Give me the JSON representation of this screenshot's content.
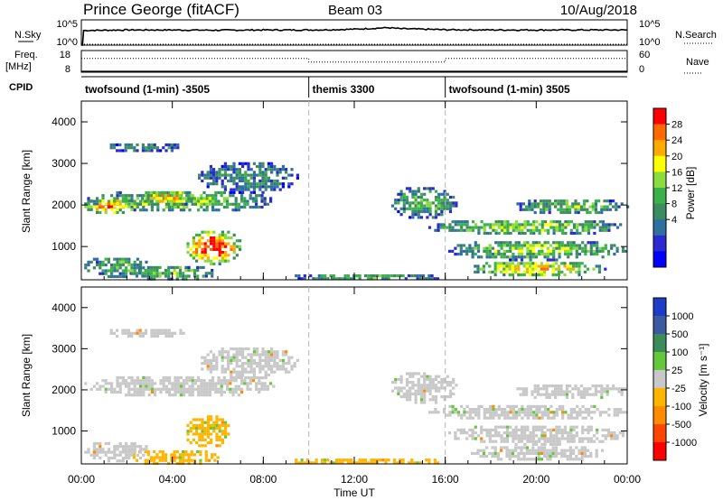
{
  "header": {
    "station": "Prince George (fitACF)",
    "beam": "Beam 03",
    "date": "10/Aug/2018"
  },
  "chart_data": [
    {
      "type": "line",
      "panel": "noise",
      "left_label": "N.Sky",
      "right_label": "N.Search",
      "left_ticks": [
        "10^5",
        "10^0"
      ],
      "right_ticks": [
        "10^5",
        "10^0"
      ],
      "series": [
        {
          "name": "N.Sky",
          "style": "solid",
          "x_hours": [
            0,
            0.05,
            0.1,
            2,
            4,
            6,
            8,
            10,
            11,
            12,
            13,
            13.5,
            14,
            15,
            16,
            18,
            20,
            22,
            24
          ],
          "log_values": [
            0,
            0,
            2.9,
            3.0,
            3.0,
            2.95,
            3.0,
            3.0,
            3.05,
            3.15,
            3.35,
            3.45,
            3.25,
            3.15,
            3.05,
            3.0,
            3.0,
            3.0,
            3.0
          ]
        },
        {
          "name": "N.Search",
          "style": "dotted",
          "x_hours": [
            0,
            24
          ],
          "log_values": [
            0,
            0
          ]
        }
      ]
    },
    {
      "type": "line",
      "panel": "frequency",
      "left_label": "Freq.",
      "left_unit": "[MHz]",
      "right_label": "Nave",
      "left_ticks": [
        "18",
        "8"
      ],
      "right_ticks": [
        "60",
        "0"
      ],
      "series": [
        {
          "name": "Freq.",
          "style": "solid",
          "x_hours": [
            0,
            24
          ],
          "values_mhz": [
            9.2,
            9.2
          ]
        },
        {
          "name": "Nave",
          "style": "dotted",
          "x_hours": [
            0,
            10,
            10,
            16,
            16,
            24
          ],
          "values": [
            38,
            38,
            28,
            28,
            38,
            38
          ]
        }
      ]
    },
    {
      "type": "table",
      "panel": "cpid",
      "label": "CPID",
      "segments": [
        {
          "start_hour": 0,
          "end_hour": 10,
          "name": "twofsound (1-min) -3505"
        },
        {
          "start_hour": 10,
          "end_hour": 16,
          "name": "themis 3300"
        },
        {
          "start_hour": 16,
          "end_hour": 24,
          "name": "twofsound (1-min) 3505"
        }
      ]
    },
    {
      "type": "heatmap",
      "panel": "power",
      "ylabel": "Slant Range [km]",
      "xlim_hours": [
        0,
        24
      ],
      "ylim_km": [
        200,
        4500
      ],
      "yticks": [
        1000,
        2000,
        3000,
        4000
      ],
      "colorbar_label": "Power [dB]",
      "colorbar_ticks": [
        "28",
        "24",
        "20",
        "16",
        "12",
        "8",
        "4"
      ],
      "colorbar_colors": [
        "#ff0000",
        "#ff6a00",
        "#ffaa00",
        "#ffff00",
        "#8cdc40",
        "#3cb04a",
        "#3c8c60",
        "#3070a0",
        "#2a2ad0",
        "#0000ff"
      ],
      "regions": [
        {
          "t": [
            0,
            8.5
          ],
          "r": [
            1850,
            2400
          ],
          "level": 0.55
        },
        {
          "t": [
            0,
            2.5
          ],
          "r": [
            1800,
            2200
          ],
          "level": 0.8
        },
        {
          "t": [
            2.5,
            5
          ],
          "r": [
            2000,
            2400
          ],
          "level": 0.75
        },
        {
          "t": [
            4.5,
            7
          ],
          "r": [
            600,
            1450
          ],
          "level": 0.95
        },
        {
          "t": [
            2,
            6
          ],
          "r": [
            200,
            600
          ],
          "level": 0.5
        },
        {
          "t": [
            0,
            3
          ],
          "r": [
            300,
            800
          ],
          "level": 0.45
        },
        {
          "t": [
            5,
            9.5
          ],
          "r": [
            2300,
            3100
          ],
          "level": 0.35
        },
        {
          "t": [
            1,
            4.5
          ],
          "r": [
            3300,
            3550
          ],
          "level": 0.35
        },
        {
          "t": [
            13.5,
            16.5
          ],
          "r": [
            1700,
            2500
          ],
          "level": 0.45
        },
        {
          "t": [
            15,
            24
          ],
          "r": [
            1300,
            1700
          ],
          "level": 0.55
        },
        {
          "t": [
            16,
            24
          ],
          "r": [
            700,
            1200
          ],
          "level": 0.55
        },
        {
          "t": [
            17,
            23
          ],
          "r": [
            300,
            700
          ],
          "level": 0.7
        },
        {
          "t": [
            19,
            24
          ],
          "r": [
            1800,
            2200
          ],
          "level": 0.5
        },
        {
          "t": [
            9,
            16
          ],
          "r": [
            200,
            400
          ],
          "level": 0.4
        }
      ]
    },
    {
      "type": "heatmap",
      "panel": "velocity",
      "ylabel": "Slant Range [km]",
      "xlabel": "Time UT",
      "xlim_hours": [
        0,
        24
      ],
      "ylim_km": [
        200,
        4500
      ],
      "yticks": [
        1000,
        2000,
        3000,
        4000
      ],
      "xticks": [
        "00:00",
        "04:00",
        "08:00",
        "12:00",
        "16:00",
        "20:00",
        "00:00"
      ],
      "colorbar_label": "Velocity [m s⁻¹]",
      "colorbar_ticks": [
        "1000",
        "500",
        "100",
        "25",
        "-25",
        "-100",
        "-500",
        "-1000"
      ],
      "colorbar_colors": [
        "#1e3cc8",
        "#3c5aa0",
        "#3c8c5a",
        "#64c83c",
        "#c8c8c8",
        "#ffb400",
        "#ff8c00",
        "#ff4600",
        "#ff0000"
      ],
      "regions": [
        {
          "t": [
            0,
            8.5
          ],
          "r": [
            1850,
            2400
          ],
          "color": "#c8c8c8"
        },
        {
          "t": [
            5,
            9.5
          ],
          "r": [
            2300,
            3100
          ],
          "color": "#c8c8c8"
        },
        {
          "t": [
            1,
            4.5
          ],
          "r": [
            3300,
            3550
          ],
          "color": "#c8c8c8"
        },
        {
          "t": [
            4.5,
            6.5
          ],
          "r": [
            600,
            1450
          ],
          "color": "#ffb400"
        },
        {
          "t": [
            2,
            6
          ],
          "r": [
            200,
            600
          ],
          "color": "#ffb400"
        },
        {
          "t": [
            0,
            3
          ],
          "r": [
            300,
            800
          ],
          "color": "#c8c8c8"
        },
        {
          "t": [
            13.5,
            16.5
          ],
          "r": [
            1700,
            2500
          ],
          "color": "#c8c8c8"
        },
        {
          "t": [
            15,
            24
          ],
          "r": [
            1300,
            1700
          ],
          "color": "#c8c8c8"
        },
        {
          "t": [
            16,
            24
          ],
          "r": [
            700,
            1200
          ],
          "color": "#c8c8c8"
        },
        {
          "t": [
            17,
            23
          ],
          "r": [
            300,
            700
          ],
          "color": "#c8c8c8"
        },
        {
          "t": [
            19,
            24
          ],
          "r": [
            1800,
            2200
          ],
          "color": "#c8c8c8"
        },
        {
          "t": [
            9,
            16
          ],
          "r": [
            200,
            400
          ],
          "color": "#ffb400"
        }
      ]
    }
  ]
}
